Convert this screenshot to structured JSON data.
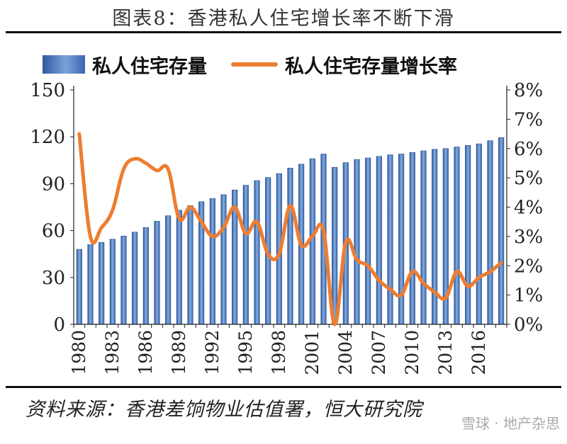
{
  "page": {
    "title": "图表8：香港私人住宅增长率不断下滑",
    "source": "资料来源：香港差饷物业估值署，恒大研究院",
    "watermark": "雪球 · 地产杂思"
  },
  "chart_data": {
    "type": "bar",
    "title": "",
    "xlabel": "",
    "ylabel": "",
    "x": [
      1980,
      1981,
      1982,
      1983,
      1984,
      1985,
      1986,
      1987,
      1988,
      1989,
      1990,
      1991,
      1992,
      1993,
      1994,
      1995,
      1996,
      1997,
      1998,
      1999,
      2000,
      2001,
      2002,
      2003,
      2004,
      2005,
      2006,
      2007,
      2008,
      2009,
      2010,
      2011,
      2012,
      2013,
      2014,
      2015,
      2016,
      2017,
      2018
    ],
    "x_tick_labels": [
      "1980",
      "1983",
      "1986",
      "1989",
      "1992",
      "1995",
      "1998",
      "2001",
      "2004",
      "2007",
      "2010",
      "2013",
      "2016"
    ],
    "y_left": {
      "lim": [
        0,
        150
      ],
      "ticks": [
        "0",
        "30",
        "60",
        "90",
        "120",
        "150"
      ]
    },
    "y_right": {
      "lim": [
        0,
        8
      ],
      "ticks": [
        "0%",
        "1%",
        "2%",
        "3%",
        "4%",
        "5%",
        "6%",
        "7%",
        "8%"
      ]
    },
    "grid": false,
    "legend_position": "top",
    "series": [
      {
        "name": "私人住宅存量",
        "type": "bar",
        "axis": "left",
        "color": "#4a7cc4",
        "values": [
          48,
          51,
          52.5,
          54.5,
          56.5,
          59,
          62,
          66,
          69.5,
          73,
          76,
          78.5,
          80.5,
          83,
          86,
          89,
          92,
          94,
          96.5,
          100,
          102.5,
          106,
          109,
          100.5,
          103.5,
          105.5,
          106.5,
          107.5,
          108.5,
          109,
          110,
          111,
          112,
          112.5,
          113.5,
          114.5,
          115.5,
          117.5,
          119.5
        ]
      },
      {
        "name": "私人住宅存量增长率",
        "type": "line",
        "axis": "right",
        "color": "#ee7d31",
        "values": [
          6.5,
          3.0,
          3.3,
          3.9,
          5.3,
          5.65,
          5.5,
          5.25,
          5.3,
          3.6,
          4.0,
          3.5,
          3.0,
          3.3,
          4.0,
          3.1,
          3.5,
          2.4,
          2.4,
          4.05,
          2.7,
          3.0,
          3.2,
          0.0,
          2.8,
          2.2,
          2.0,
          1.5,
          1.2,
          1.0,
          1.8,
          1.4,
          1.1,
          0.9,
          1.8,
          1.3,
          1.6,
          1.8,
          2.1
        ]
      }
    ]
  }
}
